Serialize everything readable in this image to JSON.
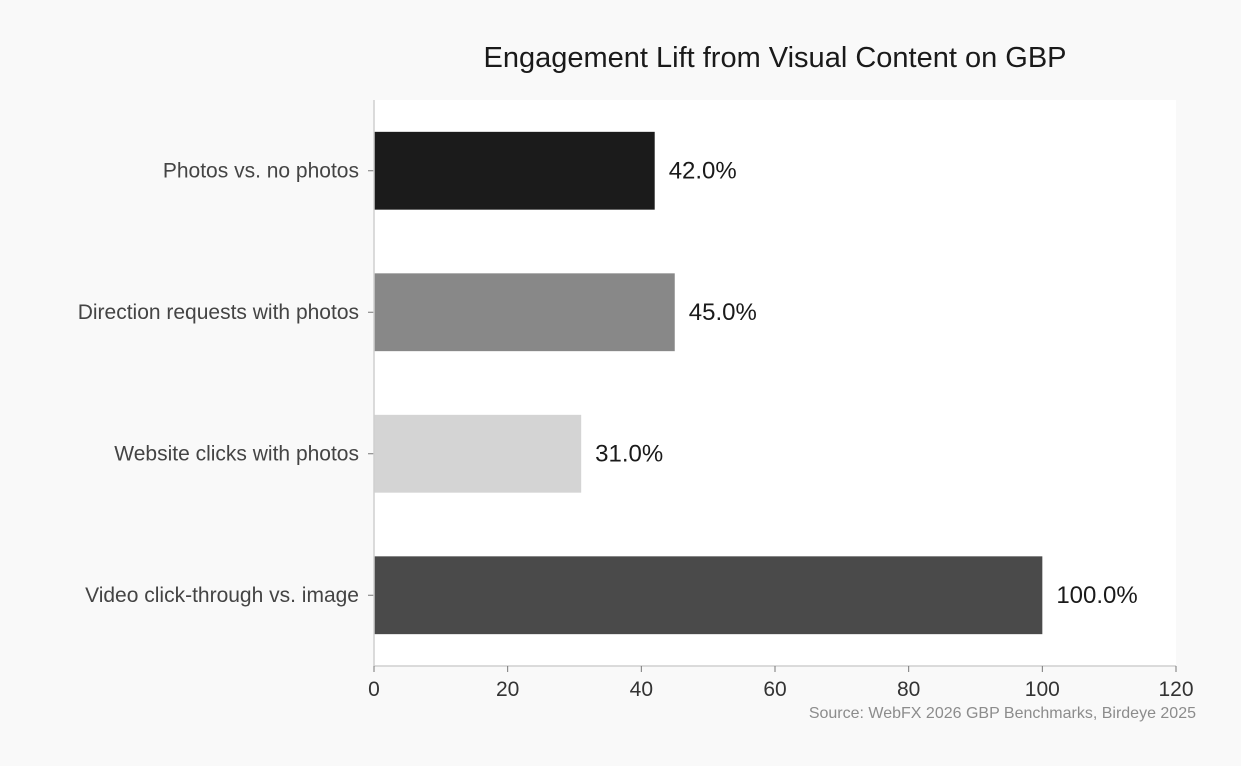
{
  "chart_data": {
    "type": "bar",
    "orientation": "horizontal",
    "title": "Engagement Lift from Visual Content on GBP",
    "categories": [
      "Photos vs. no photos",
      "Direction requests with photos",
      "Website clicks with photos",
      "Video click-through vs. image"
    ],
    "values": [
      42.0,
      45.0,
      31.0,
      100.0
    ],
    "data_labels": [
      "42.0%",
      "45.0%",
      "31.0%",
      "100.0%"
    ],
    "colors": [
      "#1b1b1b",
      "#888888",
      "#d4d4d4",
      "#4a4a4a"
    ],
    "xlim": [
      0,
      120
    ],
    "xticks": [
      0,
      20,
      40,
      60,
      80,
      100,
      120
    ],
    "xlabel": "",
    "ylabel": "",
    "grid": false,
    "legend": "none",
    "source": "Source: WebFX 2026 GBP Benchmarks, Birdeye 2025"
  }
}
